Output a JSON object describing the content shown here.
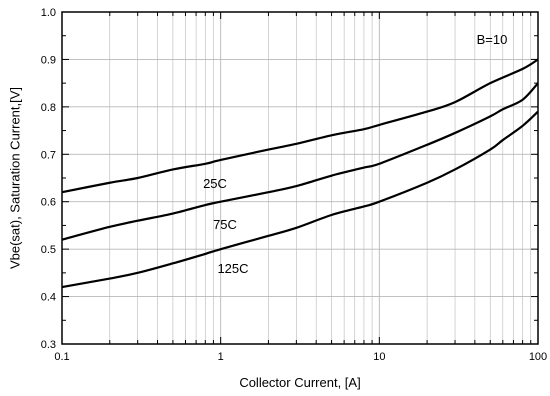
{
  "chart_data": {
    "type": "line",
    "title": "",
    "xlabel": "Collector Current, [A]",
    "ylabel": "Vbe(sat), Saturation Current,[V]",
    "xscale": "log",
    "xlim": [
      0.1,
      100
    ],
    "ylim": [
      0.3,
      1.0
    ],
    "xticks": [
      0.1,
      1,
      10,
      100
    ],
    "xtick_labels": [
      "0.1",
      "1",
      "10",
      "100"
    ],
    "yticks": [
      0.3,
      0.4,
      0.5,
      0.6,
      0.7,
      0.8,
      0.9,
      1.0
    ],
    "ytick_labels": [
      "0.3",
      "0.4",
      "0.5",
      "0.6",
      "0.7",
      "0.8",
      "0.9",
      "1.0"
    ],
    "grid": true,
    "annotation": "B=10",
    "series": [
      {
        "name": "25C",
        "x": [
          0.1,
          0.2,
          0.3,
          0.5,
          0.8,
          1,
          2,
          3,
          5,
          8,
          10,
          20,
          30,
          50,
          80,
          100
        ],
        "y": [
          0.62,
          0.64,
          0.65,
          0.668,
          0.68,
          0.688,
          0.71,
          0.722,
          0.74,
          0.753,
          0.762,
          0.79,
          0.81,
          0.85,
          0.88,
          0.9
        ]
      },
      {
        "name": "75C",
        "x": [
          0.1,
          0.2,
          0.3,
          0.5,
          0.8,
          1,
          2,
          3,
          5,
          8,
          10,
          20,
          30,
          50,
          60,
          80,
          100
        ],
        "y": [
          0.52,
          0.547,
          0.56,
          0.575,
          0.593,
          0.6,
          0.62,
          0.633,
          0.655,
          0.672,
          0.68,
          0.72,
          0.745,
          0.78,
          0.795,
          0.815,
          0.85
        ]
      },
      {
        "name": "125C",
        "x": [
          0.1,
          0.2,
          0.3,
          0.5,
          0.8,
          1,
          2,
          3,
          5,
          8,
          10,
          20,
          30,
          50,
          60,
          80,
          100
        ],
        "y": [
          0.42,
          0.438,
          0.45,
          0.47,
          0.49,
          0.5,
          0.528,
          0.545,
          0.572,
          0.59,
          0.6,
          0.64,
          0.668,
          0.71,
          0.73,
          0.76,
          0.79
        ]
      }
    ]
  }
}
